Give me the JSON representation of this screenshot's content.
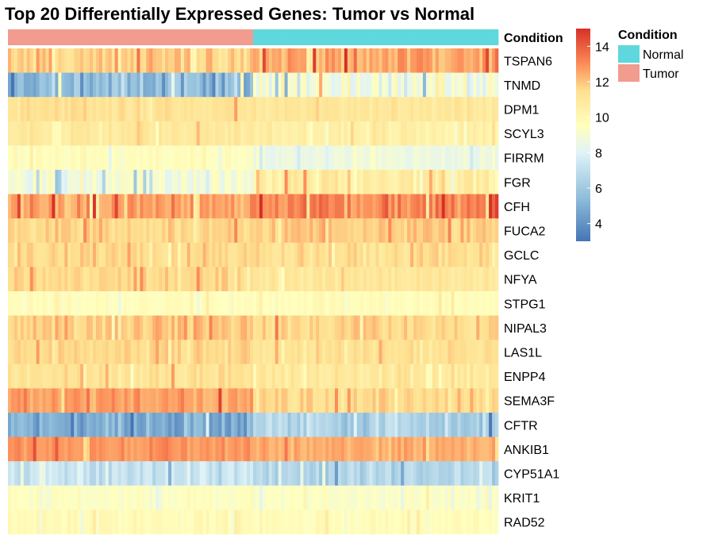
{
  "chart_data": {
    "type": "heatmap",
    "title": "Top 20 Differentially Expressed Genes: Tumor vs Normal",
    "annotation_row_label": "Condition",
    "groups": [
      {
        "name": "Tumor",
        "color": "#f29b8f",
        "samples": 78
      },
      {
        "name": "Normal",
        "color": "#5ed8dc",
        "samples": 78
      }
    ],
    "rows": [
      {
        "gene": "TSPAN6",
        "tumor_mean": 11.8,
        "normal_mean": 12.6,
        "spread": 0.9
      },
      {
        "gene": "TNMD",
        "tumor_mean": 5.5,
        "normal_mean": 8.8,
        "spread": 1.6
      },
      {
        "gene": "DPM1",
        "tumor_mean": 11.3,
        "normal_mean": 11.0,
        "spread": 0.5
      },
      {
        "gene": "SCYL3",
        "tumor_mean": 10.9,
        "normal_mean": 10.5,
        "spread": 0.5
      },
      {
        "gene": "FIRRM",
        "tumor_mean": 9.6,
        "normal_mean": 8.7,
        "spread": 0.5
      },
      {
        "gene": "FGR",
        "tumor_mean": 9.0,
        "normal_mean": 10.6,
        "spread": 1.1
      },
      {
        "gene": "CFH",
        "tumor_mean": 12.6,
        "normal_mean": 13.2,
        "spread": 1.0
      },
      {
        "gene": "FUCA2",
        "tumor_mean": 11.6,
        "normal_mean": 11.9,
        "spread": 0.6
      },
      {
        "gene": "GCLC",
        "tumor_mean": 11.5,
        "normal_mean": 11.4,
        "spread": 0.6
      },
      {
        "gene": "NFYA",
        "tumor_mean": 11.6,
        "normal_mean": 11.0,
        "spread": 0.5
      },
      {
        "gene": "STPG1",
        "tumor_mean": 9.6,
        "normal_mean": 9.7,
        "spread": 0.4
      },
      {
        "gene": "NIPAL3",
        "tumor_mean": 11.8,
        "normal_mean": 11.6,
        "spread": 0.7
      },
      {
        "gene": "LAS1L",
        "tumor_mean": 11.6,
        "normal_mean": 11.3,
        "spread": 0.5
      },
      {
        "gene": "ENPP4",
        "tumor_mean": 11.2,
        "normal_mean": 11.0,
        "spread": 0.6
      },
      {
        "gene": "SEMA3F",
        "tumor_mean": 12.6,
        "normal_mean": 11.5,
        "spread": 0.7
      },
      {
        "gene": "CFTR",
        "tumor_mean": 4.9,
        "normal_mean": 6.5,
        "spread": 1.1
      },
      {
        "gene": "ANKIB1",
        "tumor_mean": 12.8,
        "normal_mean": 12.4,
        "spread": 0.5
      },
      {
        "gene": "CYP51A1",
        "tumor_mean": 7.4,
        "normal_mean": 6.6,
        "spread": 0.9
      },
      {
        "gene": "KRIT1",
        "tumor_mean": 9.4,
        "normal_mean": 9.3,
        "spread": 0.4
      },
      {
        "gene": "RAD52",
        "tumor_mean": 9.8,
        "normal_mean": 9.7,
        "spread": 0.4
      }
    ],
    "color_scale": {
      "min": 3.0,
      "max": 15.0,
      "ticks": [
        4,
        6,
        8,
        10,
        12,
        14
      ],
      "stops": [
        {
          "value": 3.0,
          "color": "#4575b4"
        },
        {
          "value": 5.5,
          "color": "#91bfdb"
        },
        {
          "value": 8.0,
          "color": "#e0f3f8"
        },
        {
          "value": 9.5,
          "color": "#ffffbf"
        },
        {
          "value": 11.5,
          "color": "#fee090"
        },
        {
          "value": 13.0,
          "color": "#fc8d59"
        },
        {
          "value": 15.0,
          "color": "#d73027"
        }
      ]
    },
    "legend": {
      "title": "Condition",
      "items": [
        {
          "label": "Normal",
          "color": "#5ed8dc"
        },
        {
          "label": "Tumor",
          "color": "#f29b8f"
        }
      ]
    },
    "grid": false
  }
}
